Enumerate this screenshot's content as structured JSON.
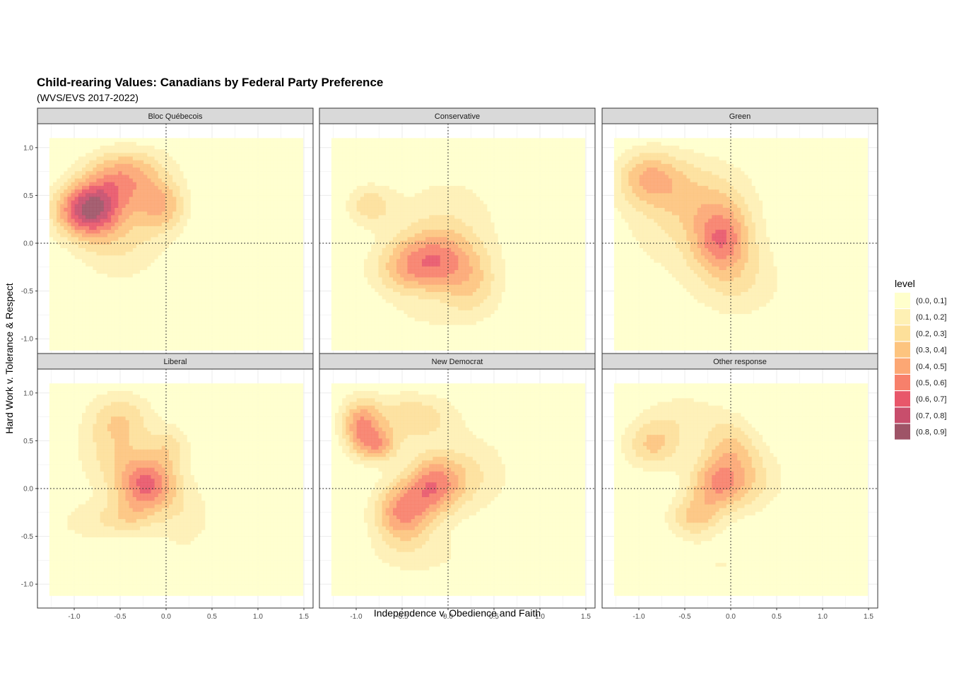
{
  "chart_data": {
    "type": "density2d_filled",
    "title": "Child-rearing Values: Canadians by Federal Party Preference",
    "subtitle": "(WVS/EVS 2017-2022)",
    "xlabel": "Independence v. Obedience and Faith",
    "ylabel": "Hard Work v. Tolerance & Respect",
    "xlim": [
      -1.4,
      1.6
    ],
    "ylim": [
      -1.25,
      1.25
    ],
    "xticks": [
      -1.0,
      -0.5,
      0.0,
      0.5,
      1.0,
      1.5
    ],
    "xtick_labels": [
      "-1.0",
      "-0.5",
      "0.0",
      "0.5",
      "1.0",
      "1.5"
    ],
    "yticks": [
      1.0,
      0.5,
      0.0,
      -0.5,
      -1.0
    ],
    "ytick_labels": [
      "1.0",
      "0.5",
      "0.0",
      "-0.5",
      "-1.0"
    ],
    "reference_lines": {
      "x": 0.0,
      "y": 0.0,
      "style": "dotted"
    },
    "grid": true,
    "legend": {
      "title": "level",
      "position": "right",
      "entries": [
        {
          "label": "(0.0, 0.1]",
          "color": "#FFFFCC"
        },
        {
          "label": "(0.1, 0.2]",
          "color": "#FEF0B4"
        },
        {
          "label": "(0.2, 0.3]",
          "color": "#FDE09A"
        },
        {
          "label": "(0.3, 0.4]",
          "color": "#FDC47F"
        },
        {
          "label": "(0.4, 0.5]",
          "color": "#FCA774"
        },
        {
          "label": "(0.5, 0.6]",
          "color": "#F7806B"
        },
        {
          "label": "(0.6, 0.7]",
          "color": "#E8576A"
        },
        {
          "label": "(0.7, 0.8]",
          "color": "#C84E6C"
        },
        {
          "label": "(0.8, 0.9]",
          "color": "#9E5467"
        }
      ]
    },
    "panels": [
      {
        "name": "Bloc Québecois",
        "peaks": [
          {
            "x": -0.85,
            "y": 0.35,
            "sx": 0.25,
            "sy": 0.2,
            "w": 0.75
          },
          {
            "x": -0.5,
            "y": 0.65,
            "sx": 0.28,
            "sy": 0.2,
            "w": 0.4
          },
          {
            "x": -0.05,
            "y": 0.4,
            "sx": 0.2,
            "sy": 0.2,
            "w": 0.35
          },
          {
            "x": -0.5,
            "y": 0.0,
            "sx": 0.35,
            "sy": 0.3,
            "w": 0.2
          },
          {
            "x": -0.3,
            "y": 0.85,
            "sx": 0.35,
            "sy": 0.15,
            "w": 0.12
          }
        ]
      },
      {
        "name": "Conservative",
        "peaks": [
          {
            "x": -0.15,
            "y": -0.15,
            "sx": 0.32,
            "sy": 0.22,
            "w": 0.4
          },
          {
            "x": -0.45,
            "y": -0.3,
            "sx": 0.3,
            "sy": 0.2,
            "w": 0.25
          },
          {
            "x": -0.85,
            "y": 0.4,
            "sx": 0.18,
            "sy": 0.15,
            "w": 0.25
          },
          {
            "x": 0.25,
            "y": -0.45,
            "sx": 0.25,
            "sy": 0.25,
            "w": 0.25
          },
          {
            "x": 0.0,
            "y": 0.3,
            "sx": 0.45,
            "sy": 0.35,
            "w": 0.15
          },
          {
            "x": -0.3,
            "y": -0.8,
            "sx": 0.4,
            "sy": 0.15,
            "w": 0.08
          }
        ]
      },
      {
        "name": "Green",
        "peaks": [
          {
            "x": -0.1,
            "y": 0.05,
            "sx": 0.22,
            "sy": 0.25,
            "w": 0.45
          },
          {
            "x": -0.9,
            "y": 0.7,
            "sx": 0.25,
            "sy": 0.2,
            "w": 0.32
          },
          {
            "x": -0.4,
            "y": 0.5,
            "sx": 0.45,
            "sy": 0.3,
            "w": 0.25
          },
          {
            "x": 0.1,
            "y": -0.4,
            "sx": 0.35,
            "sy": 0.3,
            "w": 0.18
          },
          {
            "x": -0.6,
            "y": 0.0,
            "sx": 0.5,
            "sy": 0.4,
            "w": 0.1
          }
        ]
      },
      {
        "name": "Liberal",
        "peaks": [
          {
            "x": -0.2,
            "y": 0.05,
            "sx": 0.22,
            "sy": 0.2,
            "w": 0.55
          },
          {
            "x": -0.55,
            "y": 0.35,
            "sx": 0.3,
            "sy": 0.3,
            "w": 0.22
          },
          {
            "x": -0.5,
            "y": 0.75,
            "sx": 0.25,
            "sy": 0.2,
            "w": 0.22
          },
          {
            "x": -0.4,
            "y": -0.3,
            "sx": 0.2,
            "sy": 0.15,
            "w": 0.2
          },
          {
            "x": 0.05,
            "y": 0.45,
            "sx": 0.15,
            "sy": 0.15,
            "w": 0.2
          },
          {
            "x": -0.85,
            "y": -0.35,
            "sx": 0.25,
            "sy": 0.15,
            "w": 0.15
          },
          {
            "x": 0.2,
            "y": -0.3,
            "sx": 0.25,
            "sy": 0.3,
            "w": 0.15
          }
        ]
      },
      {
        "name": "New Democrat",
        "peaks": [
          {
            "x": -0.15,
            "y": 0.05,
            "sx": 0.22,
            "sy": 0.22,
            "w": 0.5
          },
          {
            "x": -0.5,
            "y": -0.25,
            "sx": 0.22,
            "sy": 0.22,
            "w": 0.5
          },
          {
            "x": -0.95,
            "y": 0.65,
            "sx": 0.15,
            "sy": 0.2,
            "w": 0.45
          },
          {
            "x": -0.75,
            "y": 0.45,
            "sx": 0.15,
            "sy": 0.12,
            "w": 0.35
          },
          {
            "x": -0.4,
            "y": 0.75,
            "sx": 0.35,
            "sy": 0.18,
            "w": 0.28
          },
          {
            "x": 0.3,
            "y": 0.15,
            "sx": 0.3,
            "sy": 0.3,
            "w": 0.18
          },
          {
            "x": -0.3,
            "y": -0.7,
            "sx": 0.45,
            "sy": 0.2,
            "w": 0.12
          }
        ]
      },
      {
        "name": "Other response",
        "peaks": [
          {
            "x": -0.15,
            "y": 0.05,
            "sx": 0.22,
            "sy": 0.2,
            "w": 0.45
          },
          {
            "x": -0.4,
            "y": -0.3,
            "sx": 0.2,
            "sy": 0.15,
            "w": 0.3
          },
          {
            "x": -0.85,
            "y": 0.45,
            "sx": 0.22,
            "sy": 0.18,
            "w": 0.3
          },
          {
            "x": 0.0,
            "y": 0.45,
            "sx": 0.2,
            "sy": 0.2,
            "w": 0.25
          },
          {
            "x": 0.25,
            "y": 0.1,
            "sx": 0.25,
            "sy": 0.25,
            "w": 0.2
          },
          {
            "x": -0.5,
            "y": 0.75,
            "sx": 0.35,
            "sy": 0.2,
            "w": 0.15
          },
          {
            "x": -0.1,
            "y": -0.8,
            "sx": 0.45,
            "sy": 0.18,
            "w": 0.1
          }
        ]
      }
    ]
  }
}
